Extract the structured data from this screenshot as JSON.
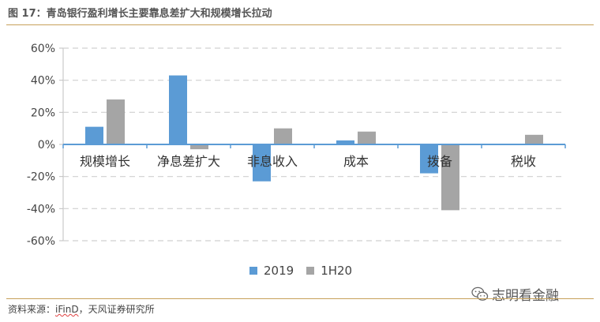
{
  "figure": {
    "title": "图 17：青岛银行盈利增长主要靠息差扩大和规模增长拉动",
    "source_prefix": "资料来源：",
    "source_ifind": "iFinD",
    "source_suffix": "，天风证券研究所",
    "watermark": "志明看金融",
    "watermark_icon": "wechat-icon"
  },
  "chart_data": {
    "type": "bar",
    "categories": [
      "规模增长",
      "净息差扩大",
      "非息收入",
      "成本",
      "拨备",
      "税收"
    ],
    "series": [
      {
        "name": "2019",
        "color": "#5b9bd5",
        "values": [
          11,
          43,
          -23,
          2.5,
          -18,
          0
        ]
      },
      {
        "name": "1H20",
        "color": "#a5a5a5",
        "values": [
          28,
          -3,
          10,
          8,
          -41,
          6
        ]
      }
    ],
    "ylim": [
      -60,
      60
    ],
    "yticks": [
      60,
      40,
      20,
      0,
      -20,
      -40,
      -60
    ],
    "ytick_labels": [
      "60%",
      "40%",
      "20%",
      "0%",
      "-20%",
      "-40%",
      "-60%"
    ],
    "grid": true,
    "legend": "bottom"
  }
}
